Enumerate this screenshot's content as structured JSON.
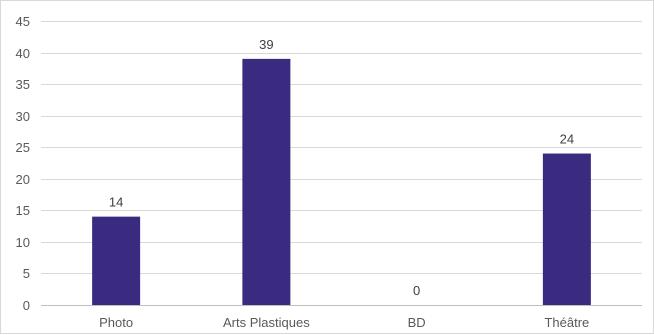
{
  "chart_data": {
    "type": "bar",
    "categories": [
      "Photo",
      "Arts Plastiques",
      "BD",
      "Théâtre"
    ],
    "values": [
      14,
      39,
      0,
      24
    ],
    "data_labels": [
      "14",
      "39",
      "0",
      "24"
    ],
    "title": "",
    "xlabel": "",
    "ylabel": "",
    "ylim": [
      0,
      45
    ],
    "yticks": [
      0,
      5,
      10,
      15,
      20,
      25,
      30,
      35,
      40,
      45
    ],
    "ytick_labels": [
      "0",
      "5",
      "10",
      "15",
      "20",
      "25",
      "30",
      "35",
      "40",
      "45"
    ],
    "grid": true,
    "legend": "none",
    "colors": {
      "bar": "#3a2a80",
      "grid": "#d9d9d9",
      "axis": "#bfbfbf",
      "text": "#595959"
    }
  }
}
